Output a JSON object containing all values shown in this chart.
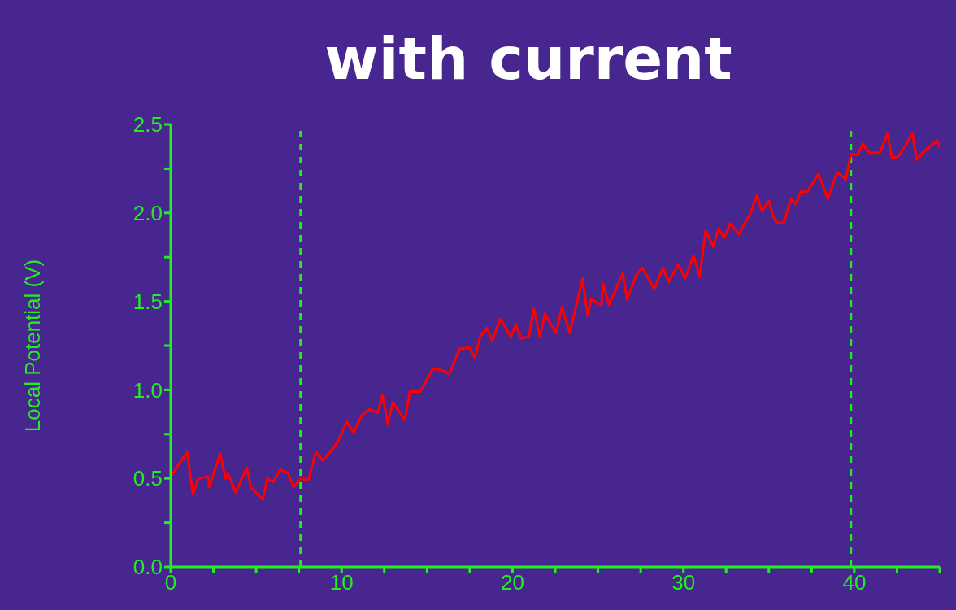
{
  "chart_data": {
    "type": "line",
    "title": "with current",
    "ylabel": "Local Potential (V)",
    "xlim": [
      0,
      45
    ],
    "xticks": [
      0,
      {
        "value": 2.5,
        "label": null
      },
      {
        "value": 5,
        "label": null
      },
      {
        "value": 7.5,
        "label": null
      },
      10,
      {
        "value": 12.5,
        "label": null
      },
      {
        "value": 15,
        "label": null
      },
      {
        "value": 17.5,
        "label": null
      },
      20,
      {
        "value": 22.5,
        "label": null
      },
      {
        "value": 25,
        "label": null
      },
      {
        "value": 27.5,
        "label": null
      },
      30,
      {
        "value": 32.5,
        "label": null
      },
      {
        "value": 35,
        "label": null
      },
      {
        "value": 37.5,
        "label": null
      },
      40,
      {
        "value": 42.5,
        "label": null
      },
      {
        "value": 45,
        "label": null
      }
    ],
    "ylim": [
      0,
      2.5
    ],
    "yticks": [
      {
        "value": 0,
        "label": "0.0"
      },
      {
        "value": 0.25,
        "label": null
      },
      {
        "value": 0.5,
        "label": "0.5"
      },
      {
        "value": 0.75,
        "label": null
      },
      {
        "value": 1,
        "label": "1.0"
      },
      {
        "value": 1.25,
        "label": null
      },
      {
        "value": 1.5,
        "label": "1.5"
      },
      {
        "value": 1.75,
        "label": null
      },
      {
        "value": 2,
        "label": "2.0"
      },
      {
        "value": 2.25,
        "label": null
      },
      {
        "value": 2.5,
        "label": "2.5"
      }
    ],
    "ref_lines": [
      {
        "axis": "x",
        "value": 7.6,
        "color": "#22ee22",
        "line_style": "dashed"
      },
      {
        "axis": "x",
        "value": 39.8,
        "color": "#22ee22",
        "line_style": "dashed"
      }
    ],
    "series": [
      {
        "color": "#ff0000",
        "line_style": "solid",
        "x": [
          0,
          0.96,
          1.3,
          1.6,
          2.2,
          2.25,
          2.9,
          3.2,
          3.35,
          3.8,
          4.45,
          4.7,
          5.4,
          5.65,
          6.0,
          6.4,
          6.85,
          7.2,
          7.6,
          8.05,
          8.5,
          8.9,
          9.35,
          9.8,
          10.3,
          10.7,
          11.2,
          11.65,
          12.1,
          12.4,
          12.7,
          13.0,
          13.7,
          14.0,
          14.6,
          15.35,
          15.9,
          16.3,
          16.9,
          17.5,
          17.8,
          18.1,
          18.5,
          18.8,
          19.3,
          19.9,
          20.2,
          20.5,
          20.95,
          21.25,
          21.6,
          21.9,
          22.55,
          22.9,
          23.35,
          24.1,
          24.4,
          24.6,
          25.2,
          25.3,
          25.65,
          26.45,
          26.7,
          27.25,
          27.6,
          28.3,
          28.8,
          29.15,
          29.7,
          30.1,
          30.6,
          30.95,
          31.3,
          31.75,
          32.05,
          32.4,
          32.75,
          33.25,
          33.7,
          33.9,
          34.3,
          34.6,
          35.0,
          35.25,
          35.5,
          35.9,
          36.3,
          36.6,
          36.85,
          37.25,
          37.65,
          37.9,
          38.45,
          39.0,
          39.5,
          39.8,
          40.2,
          40.5,
          40.85,
          41.5,
          41.95,
          42.2,
          42.6,
          43.05,
          43.4,
          43.65,
          44.0,
          44.85,
          45.0
        ],
        "values": [
          0.51,
          0.65,
          0.41,
          0.5,
          0.51,
          0.45,
          0.64,
          0.5,
          0.53,
          0.42,
          0.56,
          0.45,
          0.38,
          0.5,
          0.48,
          0.55,
          0.53,
          0.45,
          0.5,
          0.49,
          0.65,
          0.6,
          0.65,
          0.71,
          0.82,
          0.76,
          0.86,
          0.89,
          0.87,
          0.97,
          0.81,
          0.93,
          0.83,
          0.99,
          0.99,
          1.12,
          1.11,
          1.09,
          1.23,
          1.24,
          1.18,
          1.3,
          1.35,
          1.28,
          1.4,
          1.3,
          1.37,
          1.29,
          1.3,
          1.46,
          1.3,
          1.43,
          1.32,
          1.47,
          1.32,
          1.63,
          1.42,
          1.51,
          1.48,
          1.6,
          1.48,
          1.66,
          1.51,
          1.65,
          1.69,
          1.57,
          1.69,
          1.61,
          1.71,
          1.63,
          1.76,
          1.64,
          1.9,
          1.81,
          1.91,
          1.86,
          1.94,
          1.88,
          1.96,
          1.99,
          2.1,
          2.01,
          2.07,
          1.98,
          1.94,
          1.95,
          2.08,
          2.05,
          2.12,
          2.12,
          2.18,
          2.22,
          2.08,
          2.23,
          2.19,
          2.33,
          2.33,
          2.39,
          2.34,
          2.34,
          2.45,
          2.31,
          2.32,
          2.39,
          2.45,
          2.3,
          2.34,
          2.41,
          2.37
        ]
      }
    ]
  }
}
